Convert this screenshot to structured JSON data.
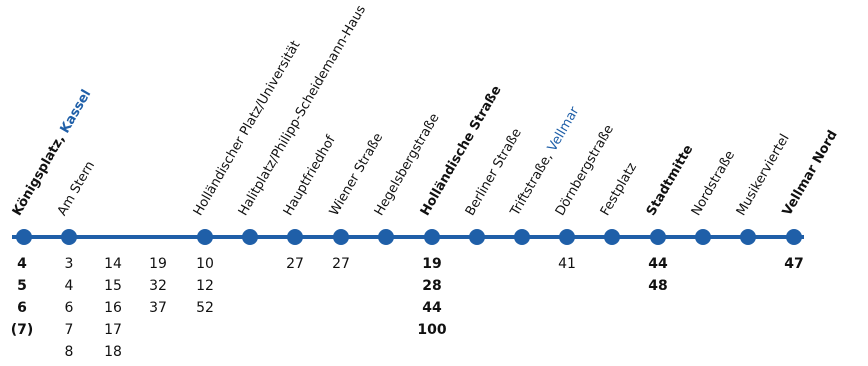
{
  "colors": {
    "line": "#1f5fa8",
    "accent": "#1f5fa8",
    "text": "#111111"
  },
  "stops": [
    {
      "name": "Königsplatz",
      "suffix": ", ",
      "suffix2": "Kassel",
      "bold": true
    },
    {
      "name": "Am Stern",
      "bold": false
    },
    {
      "name": "Holländischer Platz/Universität",
      "bold": false
    },
    {
      "name": "Halitplatz/Philipp-Scheidemann-Haus",
      "bold": false
    },
    {
      "name": "Hauptfriedhof",
      "bold": false
    },
    {
      "name": "Wiener Straße",
      "bold": false
    },
    {
      "name": "Hegelsbergstraße",
      "bold": false
    },
    {
      "name": "Holländische Straße",
      "bold": true
    },
    {
      "name": "Berliner Straße",
      "bold": false
    },
    {
      "name": "Triftstraße",
      "suffix": ", ",
      "suffix2": "Vellmar",
      "bold": false
    },
    {
      "name": "Dörnbergstraße",
      "bold": false
    },
    {
      "name": "Festplatz",
      "bold": false
    },
    {
      "name": "Stadtmitte",
      "bold": true
    },
    {
      "name": "Nordstraße",
      "bold": false
    },
    {
      "name": "Musikerviertel",
      "bold": false
    },
    {
      "name": "Vellmar Nord",
      "bold": true
    }
  ],
  "connections": [
    {
      "lines": [
        "4",
        "5",
        "6",
        "(7)"
      ],
      "bold": true
    },
    {
      "lines": [
        "3",
        "4",
        "6",
        "7",
        "8"
      ],
      "bold": false
    },
    {
      "lines": [
        "14",
        "15",
        "16",
        "17",
        "18"
      ],
      "bold": false
    },
    {
      "lines": [
        "19",
        "32",
        "37"
      ],
      "bold": false
    },
    {
      "lines": [
        "10",
        "12",
        "52"
      ],
      "bold": false
    },
    {
      "lines": [
        "27"
      ],
      "bold": false
    },
    {
      "lines": [
        "27"
      ],
      "bold": false
    },
    {
      "lines": [
        "19",
        "28",
        "44",
        "100"
      ],
      "bold": true
    },
    {
      "lines": [
        "41"
      ],
      "bold": false
    },
    {
      "lines": [
        "44",
        "48"
      ],
      "bold": true
    },
    {
      "lines": [
        "47"
      ],
      "bold": true
    }
  ]
}
